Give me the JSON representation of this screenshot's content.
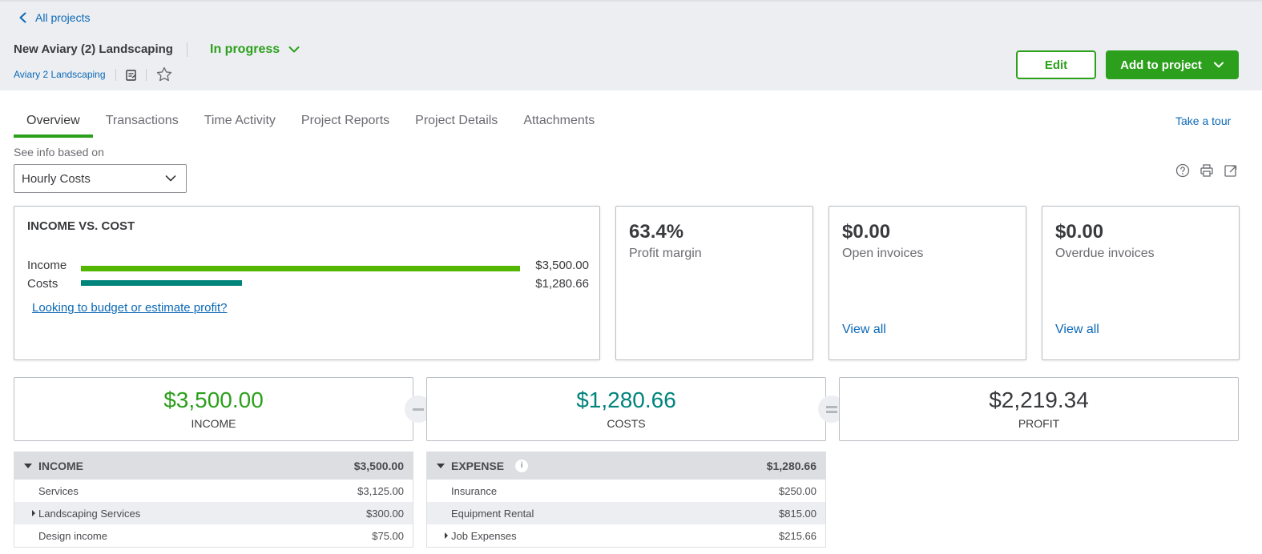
{
  "header": {
    "back_label": "All projects",
    "project_title": "New Aviary (2) Landscaping",
    "status": "In progress",
    "customer": "Aviary 2 Landscaping",
    "edit_label": "Edit",
    "add_label": "Add to project"
  },
  "tabs": [
    {
      "label": "Overview",
      "active": true
    },
    {
      "label": "Transactions"
    },
    {
      "label": "Time Activity"
    },
    {
      "label": "Project Reports"
    },
    {
      "label": "Project Details"
    },
    {
      "label": "Attachments"
    }
  ],
  "tour_label": "Take a tour",
  "filter": {
    "label": "See info based on",
    "selected": "Hourly Costs"
  },
  "income_vs_cost": {
    "title": "INCOME VS. COST",
    "income_label": "Income",
    "income_value": "$3,500.00",
    "income_fraction": 1.0,
    "costs_label": "Costs",
    "costs_value": "$1,280.66",
    "costs_fraction": 0.366,
    "budget_link": "Looking to budget or estimate profit?"
  },
  "kpis": [
    {
      "value": "63.4%",
      "label": "Profit margin"
    },
    {
      "value": "$0.00",
      "label": "Open invoices",
      "link": "View all"
    },
    {
      "value": "$0.00",
      "label": "Overdue invoices",
      "link": "View all"
    }
  ],
  "summary": {
    "income_amount": "$3,500.00",
    "income_label": "INCOME",
    "costs_amount": "$1,280.66",
    "costs_label": "COSTS",
    "profit_amount": "$2,219.34",
    "profit_label": "PROFIT"
  },
  "income_table": {
    "title": "INCOME",
    "total": "$3,500.00",
    "rows": [
      {
        "name": "Services",
        "amount": "$3,125.00"
      },
      {
        "name": "Landscaping Services",
        "amount": "$300.00",
        "expandable": true
      },
      {
        "name": "Design income",
        "amount": "$75.00"
      }
    ]
  },
  "expense_table": {
    "title": "EXPENSE",
    "total": "$1,280.66",
    "rows": [
      {
        "name": "Insurance",
        "amount": "$250.00"
      },
      {
        "name": "Equipment Rental",
        "amount": "$815.00"
      },
      {
        "name": "Job Expenses",
        "amount": "$215.66",
        "expandable": true
      }
    ]
  },
  "colors": {
    "brand_green": "#2ca01c",
    "income_bar": "#53b700",
    "costs_bar": "#00847c",
    "link_blue": "#0b69b7"
  }
}
